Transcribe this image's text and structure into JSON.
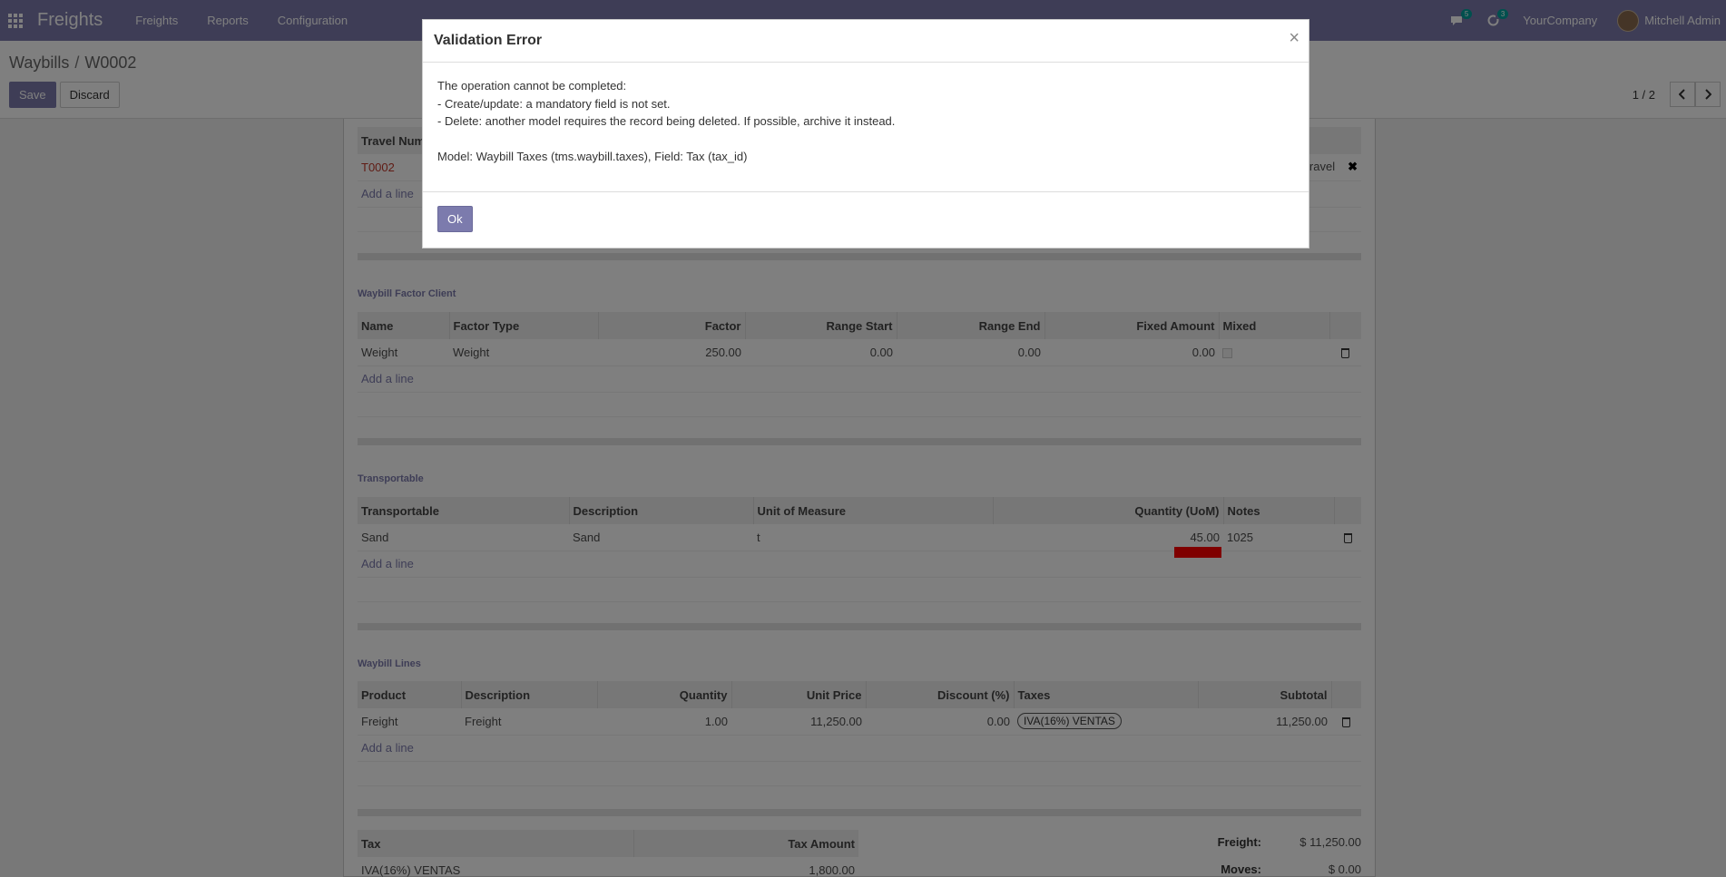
{
  "navbar": {
    "brand": "Freights",
    "menu": [
      "Freights",
      "Reports",
      "Configuration"
    ],
    "messages_count": "5",
    "activities_count": "3",
    "company": "YourCompany",
    "user": "Mitchell Admin"
  },
  "breadcrumb": {
    "parent": "Waybills",
    "separator": "/",
    "current": "W0002"
  },
  "buttons": {
    "save": "Save",
    "discard": "Discard"
  },
  "pager": {
    "value": "1 / 2"
  },
  "travels": {
    "header_first": "Travel Num",
    "row_first": "T0002",
    "row_right_fragment": "ravel",
    "add_line": "Add a line"
  },
  "factor_client": {
    "title": "Waybill Factor Client",
    "headers": [
      "Name",
      "Factor Type",
      "Factor",
      "Range Start",
      "Range End",
      "Fixed Amount",
      "Mixed"
    ],
    "rows": [
      [
        "Weight",
        "Weight",
        "250.00",
        "0.00",
        "0.00",
        "0.00"
      ]
    ],
    "add_line": "Add a line"
  },
  "transportable": {
    "title": "Transportable",
    "headers": [
      "Transportable",
      "Description",
      "Unit of Measure",
      "Quantity (UoM)",
      "Notes"
    ],
    "rows": [
      [
        "Sand",
        "Sand",
        "t",
        "45.00",
        "1025"
      ]
    ],
    "add_line": "Add a line"
  },
  "waybill_lines": {
    "title": "Waybill Lines",
    "headers": [
      "Product",
      "Description",
      "Quantity",
      "Unit Price",
      "Discount (%)",
      "Taxes",
      "Subtotal"
    ],
    "rows": [
      [
        "Freight",
        "Freight",
        "1.00",
        "11,250.00",
        "0.00",
        "IVA(16%) VENTAS",
        "11,250.00"
      ]
    ],
    "add_line": "Add a line"
  },
  "taxes": {
    "headers": [
      "Tax",
      "Tax Amount"
    ],
    "rows": [
      [
        "IVA(16%) VENTAS",
        "1,800.00"
      ]
    ]
  },
  "totals": [
    {
      "label": "Freight:",
      "value": "$ 11,250.00"
    },
    {
      "label": "Moves:",
      "value": "$ 0.00"
    }
  ],
  "modal": {
    "title": "Validation Error",
    "close": "×",
    "line1": "The operation cannot be completed:",
    "line2": "- Create/update: a mandatory field is not set.",
    "line3": "- Delete: another model requires the record being deleted. If possible, archive it instead.",
    "line4": "Model: Waybill Taxes (tms.waybill.taxes), Field: Tax (tax_id)",
    "ok": "Ok"
  },
  "colors": {
    "brand": "#7c7bad",
    "error_flag": "#ff0000"
  }
}
